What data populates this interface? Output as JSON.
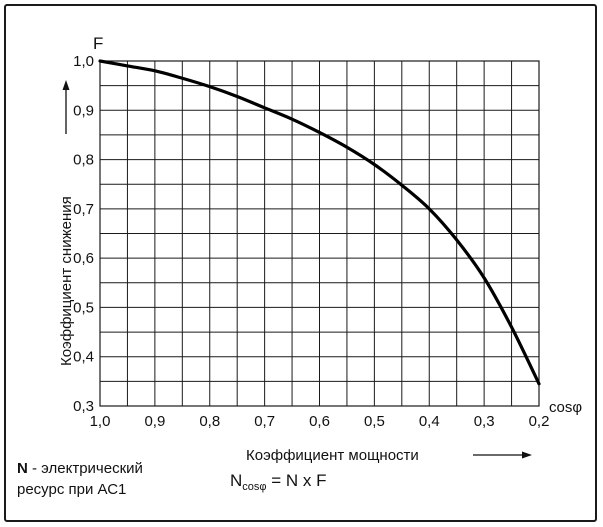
{
  "chart_data": {
    "type": "line",
    "title": "",
    "ylabel": "Коэффициент снижения",
    "y_symbol": "F",
    "xlabel": "Коэффициент мощности",
    "x_symbol": "cosφ",
    "x_reversed": true,
    "xlim": [
      1.0,
      0.2
    ],
    "ylim": [
      0.3,
      1.0
    ],
    "x_ticks": [
      "1,0",
      "0,9",
      "0,8",
      "0,7",
      "0,6",
      "0,5",
      "0,4",
      "0,3",
      "0,2"
    ],
    "y_ticks": [
      "1,0",
      "0,9",
      "0,8",
      "0,7",
      "0,6",
      "0,5",
      "0,4",
      "0,3"
    ],
    "grid": true,
    "grid_x_step": 0.05,
    "grid_y_step": 0.05,
    "series": [
      {
        "x": [
          1.0,
          0.95,
          0.9,
          0.85,
          0.8,
          0.75,
          0.7,
          0.65,
          0.6,
          0.55,
          0.5,
          0.45,
          0.4,
          0.35,
          0.3,
          0.25,
          0.2
        ],
        "values": [
          1.0,
          0.99,
          0.98,
          0.965,
          0.948,
          0.928,
          0.905,
          0.882,
          0.855,
          0.825,
          0.79,
          0.748,
          0.7,
          0.637,
          0.56,
          0.46,
          0.345
        ]
      }
    ]
  },
  "note": {
    "bold": "N",
    "text1": " - электрический",
    "text2": "ресурс при АС1"
  },
  "formula": {
    "n": "N",
    "sub": "cosφ",
    "rest": " = N x F"
  },
  "colors": {
    "line": "#000000",
    "grid": "#1a1a1a",
    "frame": "#1a1a1a"
  }
}
